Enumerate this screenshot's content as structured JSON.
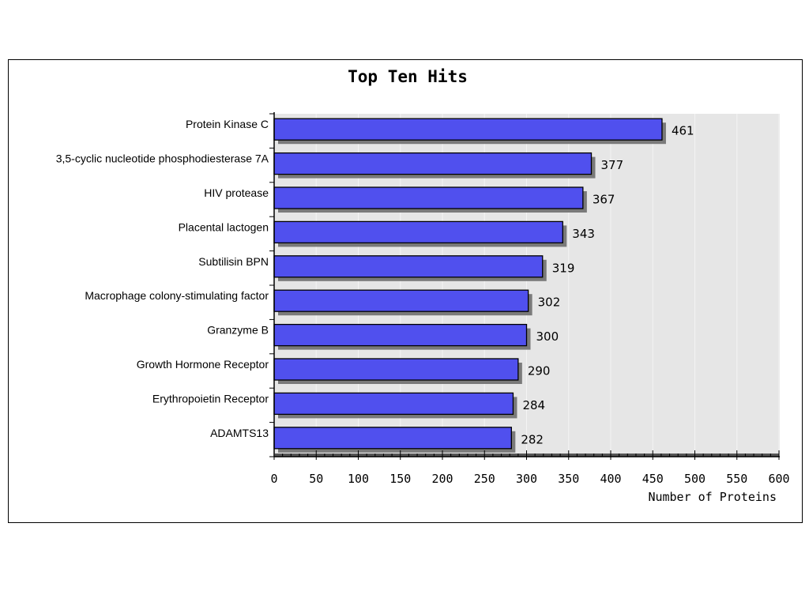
{
  "chart_data": {
    "type": "bar",
    "orientation": "horizontal",
    "title": "Top Ten Hits",
    "xlabel": "Number of Proteins",
    "ylabel": "",
    "xlim": [
      0,
      600
    ],
    "x_ticks": [
      0,
      50,
      100,
      150,
      200,
      250,
      300,
      350,
      400,
      450,
      500,
      550,
      600
    ],
    "grid": true,
    "categories": [
      "Protein Kinase C",
      "3,5-cyclic nucleotide phosphodiesterase 7A",
      "HIV protease",
      "Placental lactogen",
      "Subtilisin BPN",
      "Macrophage colony-stimulating factor",
      "Granzyme B",
      "Growth Hormone Receptor",
      "Erythropoietin Receptor",
      "ADAMTS13"
    ],
    "values": [
      461,
      377,
      367,
      343,
      319,
      302,
      300,
      290,
      284,
      282
    ],
    "colors": {
      "bar": "#5050ee",
      "shadow": "#7a7a7a",
      "plot_bg": "#e6e6e6",
      "grid": "#f4f4f4"
    }
  }
}
